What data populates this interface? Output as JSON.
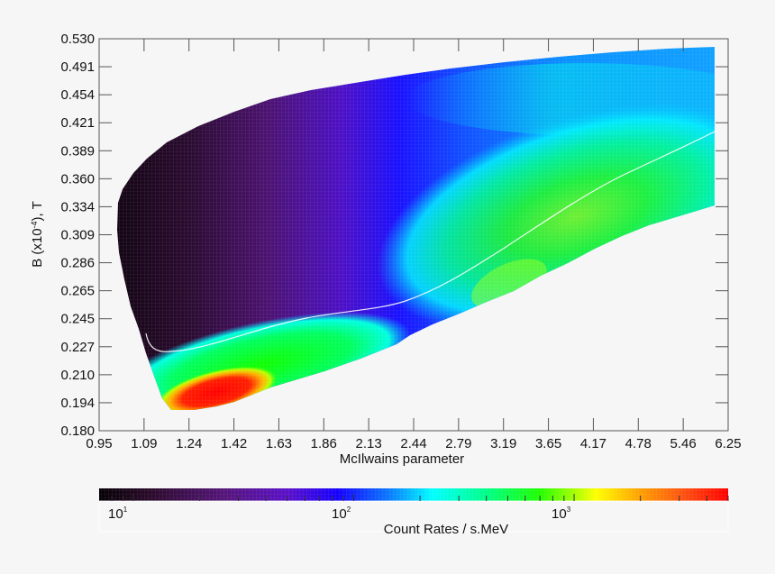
{
  "chart_data": {
    "type": "heatmap",
    "title": "",
    "xlabel": "McIlwains parameter",
    "ylabel": "B (x10⁻⁴), T",
    "x_ticks": [
      "0.95",
      "1.09",
      "1.24",
      "1.42",
      "1.63",
      "1.86",
      "2.13",
      "2.44",
      "2.79",
      "3.19",
      "3.65",
      "4.17",
      "4.78",
      "5.46",
      "6.25"
    ],
    "y_ticks": [
      "0.530",
      "0.491",
      "0.454",
      "0.421",
      "0.389",
      "0.360",
      "0.334",
      "0.309",
      "0.286",
      "0.265",
      "0.245",
      "0.227",
      "0.210",
      "0.194",
      "0.180"
    ],
    "x_scale": "log",
    "y_scale": "log",
    "xlim": [
      0.95,
      6.25
    ],
    "ylim": [
      0.18,
      0.53
    ],
    "grid": false,
    "colorbar": {
      "label": "Count Rates / s.MeV",
      "scale": "log",
      "ticks": [
        {
          "base": "10",
          "exp": "1"
        },
        {
          "base": "10",
          "exp": "2"
        },
        {
          "base": "10",
          "exp": "3"
        }
      ],
      "range_approx": [
        7,
        5000
      ],
      "colormap": [
        "#000000",
        "#3a0a3a",
        "#5a147a",
        "#6a10c0",
        "#2a00ff",
        "#0a60ff",
        "#00ffff",
        "#00ff70",
        "#20ff00",
        "#a0ff00",
        "#ffff00",
        "#ffb000",
        "#ff6000",
        "#ff0000"
      ],
      "position": "bottom"
    },
    "regions": [
      {
        "description": "Low count rate (~10) dark purple/black region",
        "x_range": [
          0.95,
          1.6
        ],
        "y_range": [
          0.23,
          0.36
        ],
        "value_approx": 10
      },
      {
        "description": "Purple to blue mid region",
        "x_range": [
          1.6,
          2.6
        ],
        "y_range": [
          0.25,
          0.46
        ],
        "value_approx": 30
      },
      {
        "description": "High count rate (~3000) red hot spot near lower-left boundary",
        "x_range": [
          1.12,
          1.6
        ],
        "y_range": [
          0.185,
          0.205
        ],
        "value_approx": 3000
      },
      {
        "description": "Green band along lower edge",
        "x_range": [
          1.1,
          2.1
        ],
        "y_range": [
          0.195,
          0.235
        ],
        "value_approx": 300
      },
      {
        "description": "Cyan/green broad region at high L",
        "x_range": [
          2.6,
          6.0
        ],
        "y_range": [
          0.26,
          0.43
        ],
        "value_approx": 250
      },
      {
        "description": "Yellow-green local maximum",
        "x_range": [
          3.0,
          3.5
        ],
        "y_range": [
          0.255,
          0.28
        ],
        "value_approx": 600
      },
      {
        "description": "Light blue upper band at high L",
        "x_range": [
          3.0,
          6.0
        ],
        "y_range": [
          0.42,
          0.52
        ],
        "value_approx": 100
      }
    ],
    "overlay_line": {
      "color": "#ffffff",
      "description": "White curve tracing a minimum-B contour",
      "points": [
        [
          1.12,
          0.232
        ],
        [
          1.16,
          0.222
        ],
        [
          1.24,
          0.221
        ],
        [
          1.42,
          0.228
        ],
        [
          1.63,
          0.235
        ],
        [
          1.86,
          0.243
        ],
        [
          2.13,
          0.248
        ],
        [
          2.44,
          0.258
        ],
        [
          2.79,
          0.275
        ],
        [
          3.19,
          0.303
        ],
        [
          3.65,
          0.33
        ],
        [
          4.17,
          0.355
        ],
        [
          4.78,
          0.373
        ],
        [
          5.46,
          0.392
        ],
        [
          6.25,
          0.414
        ]
      ]
    },
    "data_envelope": {
      "upper_edge": [
        [
          0.97,
          0.338
        ],
        [
          1.05,
          0.36
        ],
        [
          1.16,
          0.389
        ],
        [
          1.3,
          0.41
        ],
        [
          1.55,
          0.43
        ],
        [
          1.86,
          0.445
        ],
        [
          2.13,
          0.455
        ],
        [
          2.79,
          0.47
        ],
        [
          3.65,
          0.485
        ],
        [
          4.78,
          0.5
        ],
        [
          6.0,
          0.51
        ]
      ],
      "lower_edge": [
        [
          0.97,
          0.28
        ],
        [
          1.03,
          0.255
        ],
        [
          1.1,
          0.225
        ],
        [
          1.13,
          0.205
        ],
        [
          1.16,
          0.188
        ],
        [
          1.42,
          0.19
        ],
        [
          1.86,
          0.205
        ],
        [
          2.13,
          0.215
        ],
        [
          2.44,
          0.227
        ],
        [
          2.79,
          0.24
        ],
        [
          3.19,
          0.255
        ],
        [
          3.65,
          0.28
        ],
        [
          4.17,
          0.3
        ],
        [
          4.78,
          0.315
        ],
        [
          5.46,
          0.327
        ],
        [
          6.0,
          0.335
        ]
      ]
    }
  },
  "colorbar_labels": {
    "tick1_base": "10",
    "tick1_exp": "1",
    "tick2_base": "10",
    "tick2_exp": "2",
    "tick3_base": "10",
    "tick3_exp": "3",
    "title": "Count Rates / s.MeV"
  },
  "axes": {
    "xlabel": "McIlwains parameter",
    "ylabel_prefix": "B (x10",
    "ylabel_exp": "-4",
    "ylabel_suffix": "), T"
  }
}
